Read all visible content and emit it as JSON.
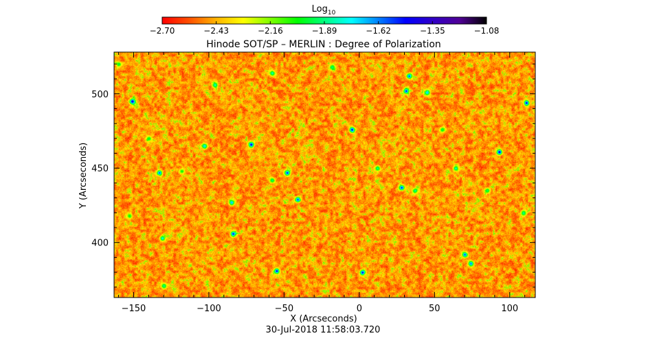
{
  "chart_data": {
    "type": "heatmap",
    "title": "Hinode SOT/SP – MERLIN : Degree of Polarization",
    "xlabel": "X (Arcseconds)",
    "ylabel": "Y (Arcseconds)",
    "timestamp": "30-Jul-2018 11:58:03.720",
    "xlim": [
      -163,
      117
    ],
    "ylim": [
      363,
      528
    ],
    "x_ticks": [
      -150,
      -100,
      -50,
      0,
      50,
      100
    ],
    "x_tick_labels": [
      "−150",
      "−100",
      "−50",
      "0",
      "50",
      "100"
    ],
    "y_ticks": [
      400,
      450,
      500
    ],
    "y_tick_labels": [
      "400",
      "450",
      "500"
    ],
    "colorbar": {
      "label_base": "Log",
      "label_sub": "10",
      "range": [
        -2.7,
        -1.08
      ],
      "ticks": [
        -2.7,
        -2.43,
        -2.16,
        -1.89,
        -1.62,
        -1.35,
        -1.08
      ],
      "tick_labels": [
        "−2.70",
        "−2.43",
        "−2.16",
        "−1.89",
        "−1.62",
        "−1.35",
        "−1.08"
      ],
      "colors": [
        "#ff0000",
        "#ff5000",
        "#ffb400",
        "#ffff00",
        "#80ff00",
        "#00ff00",
        "#00ff80",
        "#00ffff",
        "#0080ff",
        "#0000ff",
        "#3000c8",
        "#500096",
        "#000000"
      ]
    },
    "field_description": "Mostly low polarization (-2.70 to -2.43) with scattered yellow/green/blue patches",
    "patches_log10": [
      {
        "x": -151,
        "y": 495,
        "v": -1.4
      },
      {
        "x": -133,
        "y": 447,
        "v": -1.55
      },
      {
        "x": -131,
        "y": 403,
        "v": -1.75
      },
      {
        "x": -130,
        "y": 371,
        "v": -1.85
      },
      {
        "x": -118,
        "y": 448,
        "v": -2.0
      },
      {
        "x": -153,
        "y": 418,
        "v": -2.0
      },
      {
        "x": -103,
        "y": 465,
        "v": -1.7
      },
      {
        "x": -85,
        "y": 427,
        "v": -1.65
      },
      {
        "x": -84,
        "y": 406,
        "v": -1.5
      },
      {
        "x": -72,
        "y": 466,
        "v": -1.4
      },
      {
        "x": -58,
        "y": 442,
        "v": -1.9
      },
      {
        "x": -55,
        "y": 381,
        "v": -1.45
      },
      {
        "x": -48,
        "y": 447,
        "v": -1.5
      },
      {
        "x": -41,
        "y": 429,
        "v": -1.55
      },
      {
        "x": -58,
        "y": 514,
        "v": -1.8
      },
      {
        "x": -5,
        "y": 476,
        "v": -1.45
      },
      {
        "x": 2,
        "y": 380,
        "v": -1.45
      },
      {
        "x": 12,
        "y": 450,
        "v": -1.85
      },
      {
        "x": 28,
        "y": 437,
        "v": -1.5
      },
      {
        "x": 31,
        "y": 502,
        "v": -1.5
      },
      {
        "x": 33,
        "y": 512,
        "v": -1.55
      },
      {
        "x": 37,
        "y": 435,
        "v": -1.85
      },
      {
        "x": 45,
        "y": 501,
        "v": -1.7
      },
      {
        "x": 64,
        "y": 450,
        "v": -1.8
      },
      {
        "x": 70,
        "y": 392,
        "v": -1.55
      },
      {
        "x": 74,
        "y": 386,
        "v": -1.6
      },
      {
        "x": 93,
        "y": 461,
        "v": -1.4
      },
      {
        "x": 111,
        "y": 494,
        "v": -1.45
      },
      {
        "x": 109,
        "y": 420,
        "v": -1.85
      },
      {
        "x": 85,
        "y": 435,
        "v": -1.9
      },
      {
        "x": -160,
        "y": 520,
        "v": -1.95
      },
      {
        "x": -96,
        "y": 506,
        "v": -1.8
      },
      {
        "x": -18,
        "y": 518,
        "v": -1.9
      },
      {
        "x": 55,
        "y": 476,
        "v": -1.95
      },
      {
        "x": -140,
        "y": 470,
        "v": -1.95
      }
    ]
  }
}
